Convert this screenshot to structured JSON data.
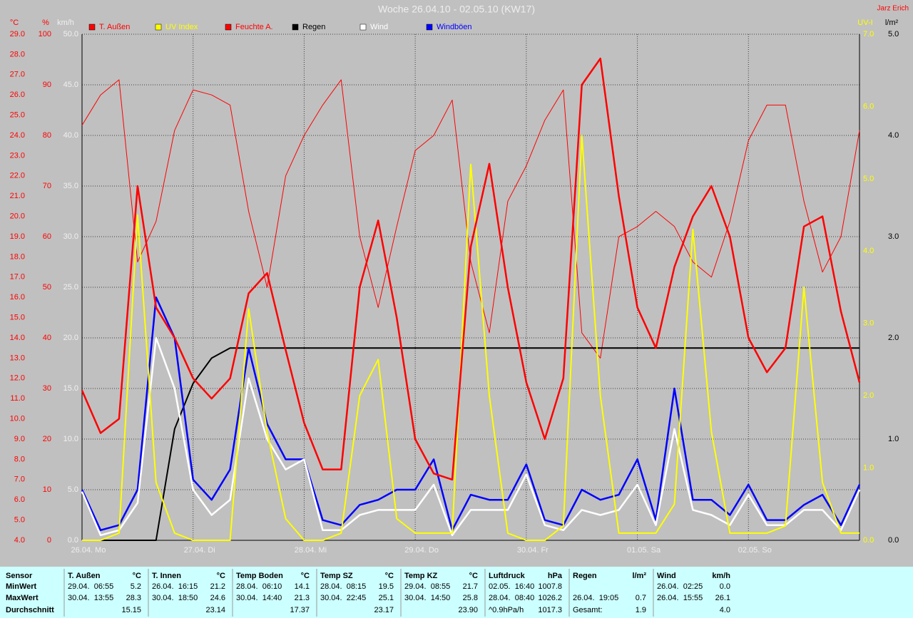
{
  "chart_data": {
    "type": "line",
    "title": "Woche 26.04.10 - 02.05.10 (KW17)",
    "author": "Jarz Erich",
    "categories": [
      "26.04. Mo",
      null,
      null,
      null,
      null,
      null,
      "27.04. Di",
      null,
      null,
      null,
      null,
      null,
      "28.04. Mi",
      null,
      null,
      null,
      null,
      null,
      "29.04. Do",
      null,
      null,
      null,
      null,
      null,
      "30.04. Fr",
      null,
      null,
      null,
      null,
      null,
      "01.05. Sa",
      null,
      null,
      null,
      null,
      null,
      "02.05. So",
      null,
      null,
      null,
      null,
      null,
      null
    ],
    "axes": {
      "temp": {
        "label": "°C",
        "color": "#ff0000",
        "lim": [
          4,
          29
        ],
        "ticks": [
          {
            "value": 4,
            "label": "4.0"
          },
          {
            "value": 5,
            "label": "5.0"
          },
          {
            "value": 6,
            "label": "6.0"
          },
          {
            "value": 7,
            "label": "7.0"
          },
          {
            "value": 8,
            "label": "8.0"
          },
          {
            "value": 9,
            "label": "9.0"
          },
          {
            "value": 10,
            "label": "10.0"
          },
          {
            "value": 11,
            "label": "11.0"
          },
          {
            "value": 12,
            "label": "12.0"
          },
          {
            "value": 13,
            "label": "13.0"
          },
          {
            "value": 14,
            "label": "14.0"
          },
          {
            "value": 15,
            "label": "15.0"
          },
          {
            "value": 16,
            "label": "16.0"
          },
          {
            "value": 17,
            "label": "17.0"
          },
          {
            "value": 18,
            "label": "18.0"
          },
          {
            "value": 19,
            "label": "19.0"
          },
          {
            "value": 20,
            "label": "20.0"
          },
          {
            "value": 21,
            "label": "21.0"
          },
          {
            "value": 22,
            "label": "22.0"
          },
          {
            "value": 23,
            "label": "23.0"
          },
          {
            "value": 24,
            "label": "24.0"
          },
          {
            "value": 25,
            "label": "25.0"
          },
          {
            "value": 26,
            "label": "26.0"
          },
          {
            "value": 27,
            "label": "27.0"
          },
          {
            "value": 28,
            "label": "28.0"
          },
          {
            "value": 29,
            "label": "29.0"
          }
        ]
      },
      "hum": {
        "label": "%",
        "color": "#ff0000",
        "lim": [
          0,
          100
        ],
        "ticks": [
          0,
          10,
          20,
          30,
          40,
          50,
          60,
          70,
          80,
          90,
          100
        ]
      },
      "wind": {
        "label": "km/h",
        "color": "#f0f0f0",
        "lim": [
          0,
          50
        ],
        "grid": true,
        "ticks": [
          {
            "value": 0,
            "label": "0.0"
          },
          {
            "value": 5,
            "label": "5.0"
          },
          {
            "value": 10,
            "label": "10.0"
          },
          {
            "value": 15,
            "label": "15.0"
          },
          {
            "value": 20,
            "label": "20.0"
          },
          {
            "value": 25,
            "label": "25.0"
          },
          {
            "value": 30,
            "label": "30.0"
          },
          {
            "value": 35,
            "label": "35.0"
          },
          {
            "value": 40,
            "label": "40.0"
          },
          {
            "value": 45,
            "label": "45.0"
          },
          {
            "value": 50,
            "label": "50.0"
          }
        ]
      },
      "uv": {
        "label": "UV-I",
        "color": "#ffff00",
        "lim": [
          0,
          7
        ],
        "ticks": [
          {
            "value": 0,
            "label": "0.0"
          },
          {
            "value": 1,
            "label": "1.0"
          },
          {
            "value": 2,
            "label": "2.0"
          },
          {
            "value": 3,
            "label": "3.0"
          },
          {
            "value": 4,
            "label": "4.0"
          },
          {
            "value": 5,
            "label": "5.0"
          },
          {
            "value": 6,
            "label": "6.0"
          },
          {
            "value": 7,
            "label": "7.0"
          }
        ]
      },
      "rain": {
        "label": "l/m²",
        "color": "#000000",
        "lim": [
          0,
          5
        ],
        "ticks": [
          {
            "value": 0,
            "label": "0.0"
          },
          {
            "value": 1,
            "label": "1.0"
          },
          {
            "value": 2,
            "label": "2.0"
          },
          {
            "value": 3,
            "label": "3.0"
          },
          {
            "value": 4,
            "label": "4.0"
          },
          {
            "value": 5,
            "label": "5.0"
          }
        ]
      }
    },
    "series": [
      {
        "name": "T. Außen",
        "color": "#ff0000",
        "axis": "temp",
        "values": [
          11.4,
          9.3,
          10.0,
          21.5,
          15.5,
          14.0,
          12.0,
          11.0,
          12.0,
          16.2,
          17.2,
          13.4,
          9.8,
          7.5,
          7.5,
          16.5,
          19.8,
          15.0,
          9.0,
          7.3,
          7.0,
          18.5,
          22.6,
          16.5,
          11.8,
          9.0,
          12.0,
          26.5,
          27.8,
          21.0,
          15.5,
          13.5,
          17.5,
          20.0,
          21.5,
          19.0,
          14.0,
          12.3,
          13.5,
          19.5,
          20.0,
          15.3,
          11.8
        ]
      },
      {
        "name": "UV Index",
        "color": "#ffff00",
        "axis": "uv",
        "values": [
          0,
          0,
          0.1,
          4.5,
          0.8,
          0.1,
          0,
          0,
          0,
          3.2,
          1.5,
          0.3,
          0,
          0,
          0.1,
          2.0,
          2.5,
          0.3,
          0.1,
          0.1,
          0.1,
          5.2,
          2.0,
          0.1,
          0,
          0,
          0.2,
          5.6,
          2.0,
          0.1,
          0.1,
          0.1,
          0.5,
          4.3,
          1.5,
          0.1,
          0.1,
          0.1,
          0.2,
          3.5,
          0.8,
          0.1,
          0.1
        ]
      },
      {
        "name": "Feuchte A.",
        "color": "#ff0000",
        "axis": "hum",
        "values": [
          82,
          88,
          91,
          55,
          63,
          81,
          89,
          88,
          86,
          65,
          50,
          72,
          80,
          86,
          91,
          60,
          46,
          62,
          77,
          80,
          87,
          55,
          41,
          67,
          74,
          83,
          89,
          41,
          36,
          60,
          62,
          65,
          62,
          55,
          52,
          63,
          79,
          86,
          86,
          67,
          53,
          60,
          81
        ]
      },
      {
        "name": "Regen",
        "color": "#000000",
        "axis": "rain",
        "values": [
          0,
          0,
          0,
          0,
          0,
          1.1,
          1.55,
          1.8,
          1.9,
          1.9,
          1.9,
          1.9,
          1.9,
          1.9,
          1.9,
          1.9,
          1.9,
          1.9,
          1.9,
          1.9,
          1.9,
          1.9,
          1.9,
          1.9,
          1.9,
          1.9,
          1.9,
          1.9,
          1.9,
          1.9,
          1.9,
          1.9,
          1.9,
          1.9,
          1.9,
          1.9,
          1.9,
          1.9,
          1.9,
          1.9,
          1.9,
          1.9,
          1.9
        ]
      },
      {
        "name": "Wind",
        "color": "#ffffff",
        "axis": "wind",
        "values": [
          4.8,
          0.5,
          1,
          3.7,
          20,
          15,
          5,
          2.5,
          4,
          16,
          10,
          7,
          8,
          1,
          1,
          2.5,
          3,
          3,
          3,
          5.5,
          0.5,
          3,
          3,
          3,
          6.5,
          1.5,
          1,
          3,
          2.5,
          3,
          5.5,
          1.5,
          11,
          3,
          2.5,
          1.5,
          4.5,
          1.5,
          1.5,
          3,
          3,
          1,
          5
        ]
      },
      {
        "name": "Windböen",
        "color": "#0000ff",
        "axis": "wind",
        "values": [
          5,
          1,
          1.5,
          5,
          24,
          20,
          6,
          4,
          7,
          19,
          11.5,
          8,
          8,
          2,
          1.5,
          3.5,
          4,
          5,
          5,
          8,
          1,
          4.5,
          4,
          4,
          7.5,
          2,
          1.5,
          5,
          4,
          4.5,
          8,
          2,
          15,
          4,
          4,
          2.5,
          5.5,
          2,
          2,
          3.5,
          4.5,
          1.5,
          5.5
        ]
      }
    ]
  },
  "table": {
    "row_labels": [
      "Sensor",
      "MinWert",
      "MaxWert",
      "Durchschnitt"
    ],
    "groups": [
      {
        "name": "T. Außen",
        "unit": "°C",
        "rows": [
          [
            "29.04.  06:55",
            "5.2"
          ],
          [
            "30.04.  13:55",
            "28.3"
          ],
          [
            null,
            "15.15"
          ]
        ]
      },
      {
        "name": "T. Innen",
        "unit": "°C",
        "rows": [
          [
            "26.04.  16:15",
            "21.2"
          ],
          [
            "30.04.  18:50",
            "24.6"
          ],
          [
            null,
            "23.14"
          ]
        ]
      },
      {
        "name": "Temp Boden",
        "unit": "°C",
        "rows": [
          [
            "28.04.  06:10",
            "14.1"
          ],
          [
            "30.04.  14:40",
            "21.3"
          ],
          [
            null,
            "17.37"
          ]
        ]
      },
      {
        "name": "Temp SZ",
        "unit": "°C",
        "rows": [
          [
            "28.04.  08:15",
            "19.5"
          ],
          [
            "30.04.  22:45",
            "25.1"
          ],
          [
            null,
            "23.17"
          ]
        ]
      },
      {
        "name": "Temp KZ",
        "unit": "°C",
        "rows": [
          [
            "29.04.  08:55",
            "21.7"
          ],
          [
            "30.04.  14:50",
            "25.8"
          ],
          [
            null,
            "23.90"
          ]
        ]
      },
      {
        "name": "Luftdruck",
        "unit": "hPa",
        "rows": [
          [
            "02.05.  16:40",
            "1007.8"
          ],
          [
            "28.04.  08:40",
            "1026.2"
          ],
          [
            "^0.9hPa/h",
            "1017.3"
          ]
        ]
      },
      {
        "name": "Regen",
        "unit": "l/m²",
        "rows": [
          [
            null,
            null
          ],
          [
            "26.04.  19:05",
            "0.7"
          ],
          [
            "Gesamt:",
            "1.9"
          ]
        ]
      },
      {
        "name": "Wind",
        "unit": "km/h",
        "rows": [
          [
            "26.04.  02:25",
            "0.0"
          ],
          [
            "26.04.  15:55",
            "26.1"
          ],
          [
            null,
            "4.0"
          ]
        ]
      }
    ]
  }
}
